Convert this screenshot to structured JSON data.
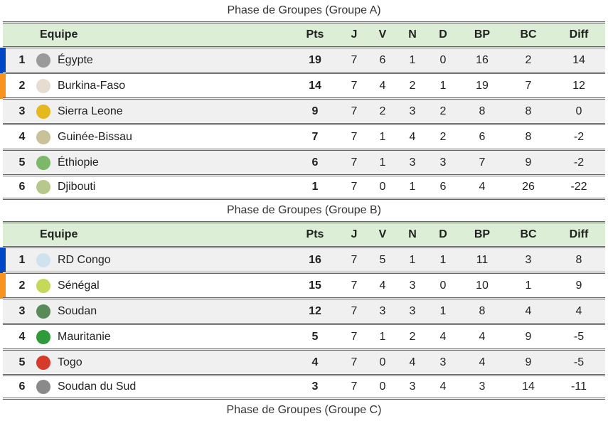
{
  "headers": {
    "team": "Equipe",
    "cols": [
      "Pts",
      "J",
      "V",
      "N",
      "D",
      "BP",
      "BC",
      "Diff"
    ]
  },
  "qual_colors": {
    "first": "#0047c8",
    "second": "#f7931e"
  },
  "groups": [
    {
      "title": "Phase de Groupes (Groupe A)",
      "rows": [
        {
          "rank": "1",
          "team": "Égypte",
          "flag": "egypt-flag-icon",
          "color": "#9a9a9a",
          "stats": [
            "19",
            "7",
            "6",
            "1",
            "0",
            "16",
            "2",
            "14"
          ]
        },
        {
          "rank": "2",
          "team": "Burkina-Faso",
          "flag": "burkina-faso-flag-icon",
          "color": "#e6ddd0",
          "stats": [
            "14",
            "7",
            "4",
            "2",
            "1",
            "19",
            "7",
            "12"
          ]
        },
        {
          "rank": "3",
          "team": "Sierra Leone",
          "flag": "sierra-leone-flag-icon",
          "color": "#e6b820",
          "stats": [
            "9",
            "7",
            "2",
            "3",
            "2",
            "8",
            "8",
            "0"
          ]
        },
        {
          "rank": "4",
          "team": "Guinée-Bissau",
          "flag": "guinea-bissau-flag-icon",
          "color": "#c9c19a",
          "stats": [
            "7",
            "7",
            "1",
            "4",
            "2",
            "6",
            "8",
            "-2"
          ]
        },
        {
          "rank": "5",
          "team": "Éthiopie",
          "flag": "ethiopia-flag-icon",
          "color": "#7bb86a",
          "stats": [
            "6",
            "7",
            "1",
            "3",
            "3",
            "7",
            "9",
            "-2"
          ]
        },
        {
          "rank": "6",
          "team": "Djibouti",
          "flag": "djibouti-flag-icon",
          "color": "#b7c98a",
          "stats": [
            "1",
            "7",
            "0",
            "1",
            "6",
            "4",
            "26",
            "-22"
          ]
        }
      ]
    },
    {
      "title": "Phase de Groupes (Groupe B)",
      "rows": [
        {
          "rank": "1",
          "team": "RD Congo",
          "flag": "dr-congo-flag-icon",
          "color": "#cfe3ef",
          "stats": [
            "16",
            "7",
            "5",
            "1",
            "1",
            "11",
            "3",
            "8"
          ]
        },
        {
          "rank": "2",
          "team": "Sénégal",
          "flag": "senegal-flag-icon",
          "color": "#c6d85a",
          "stats": [
            "15",
            "7",
            "4",
            "3",
            "0",
            "10",
            "1",
            "9"
          ]
        },
        {
          "rank": "3",
          "team": "Soudan",
          "flag": "sudan-flag-icon",
          "color": "#5a8a5a",
          "stats": [
            "12",
            "7",
            "3",
            "3",
            "1",
            "8",
            "4",
            "4"
          ]
        },
        {
          "rank": "4",
          "team": "Mauritanie",
          "flag": "mauritania-flag-icon",
          "color": "#2f9a3a",
          "stats": [
            "5",
            "7",
            "1",
            "2",
            "4",
            "4",
            "9",
            "-5"
          ]
        },
        {
          "rank": "5",
          "team": "Togo",
          "flag": "togo-flag-icon",
          "color": "#d63a2a",
          "stats": [
            "4",
            "7",
            "0",
            "4",
            "3",
            "4",
            "9",
            "-5"
          ]
        },
        {
          "rank": "6",
          "team": "Soudan du Sud",
          "flag": "south-sudan-flag-icon",
          "color": "#8a8a8a",
          "stats": [
            "3",
            "7",
            "0",
            "3",
            "4",
            "3",
            "14",
            "-11"
          ]
        }
      ]
    }
  ],
  "next_title": "Phase de Groupes (Groupe C)"
}
